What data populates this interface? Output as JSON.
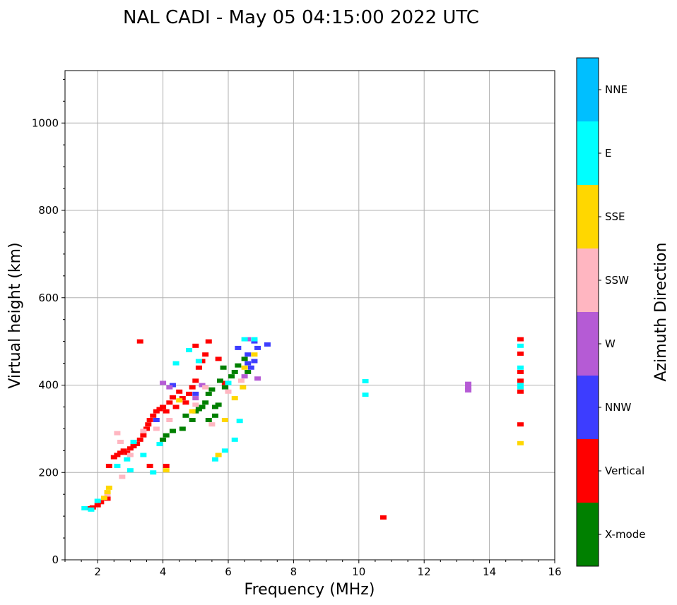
{
  "chart_data": {
    "type": "scatter",
    "title": "NAL CADI - May 05 04:15:00 2022 UTC",
    "xlabel": "Frequency (MHz)",
    "ylabel": "Virtual height (km)",
    "xlim": [
      1.0,
      16.0
    ],
    "ylim": [
      0,
      1120
    ],
    "xticks": [
      2,
      4,
      6,
      8,
      10,
      12,
      14,
      16
    ],
    "yticks": [
      0,
      200,
      400,
      600,
      800,
      1000
    ],
    "grid": true,
    "colorbar": {
      "label": "Azimuth Direction",
      "categories": [
        {
          "name": "X-mode",
          "color": "#008000"
        },
        {
          "name": "Vertical",
          "color": "#ff0000"
        },
        {
          "name": "NNW",
          "color": "#3d3dff"
        },
        {
          "name": "W",
          "color": "#b55bd5"
        },
        {
          "name": "SSW",
          "color": "#ffb6c1"
        },
        {
          "name": "SSE",
          "color": "#ffd700"
        },
        {
          "name": "E",
          "color": "#00ffff"
        },
        {
          "name": "NNE",
          "color": "#00bfff"
        }
      ]
    },
    "series": [
      {
        "name": "Vertical",
        "color": "#ff0000",
        "points": [
          [
            1.7,
            118
          ],
          [
            1.85,
            120
          ],
          [
            2.0,
            125
          ],
          [
            2.1,
            132
          ],
          [
            2.3,
            140
          ],
          [
            2.35,
            215
          ],
          [
            2.5,
            235
          ],
          [
            2.6,
            240
          ],
          [
            2.7,
            245
          ],
          [
            2.8,
            250
          ],
          [
            2.9,
            245
          ],
          [
            3.0,
            255
          ],
          [
            3.1,
            260
          ],
          [
            3.2,
            265
          ],
          [
            3.3,
            275
          ],
          [
            3.4,
            285
          ],
          [
            3.5,
            300
          ],
          [
            3.55,
            310
          ],
          [
            3.6,
            320
          ],
          [
            3.7,
            330
          ],
          [
            3.8,
            340
          ],
          [
            3.9,
            345
          ],
          [
            4.0,
            350
          ],
          [
            4.1,
            340
          ],
          [
            4.2,
            360
          ],
          [
            4.3,
            372
          ],
          [
            4.4,
            350
          ],
          [
            4.5,
            385
          ],
          [
            4.6,
            370
          ],
          [
            4.7,
            360
          ],
          [
            4.8,
            380
          ],
          [
            4.9,
            395
          ],
          [
            5.0,
            410
          ],
          [
            5.1,
            440
          ],
          [
            5.2,
            455
          ],
          [
            5.3,
            470
          ],
          [
            5.4,
            500
          ],
          [
            3.3,
            500
          ],
          [
            3.6,
            215
          ],
          [
            4.1,
            215
          ],
          [
            5.0,
            490
          ],
          [
            5.7,
            460
          ],
          [
            5.9,
            405
          ],
          [
            10.75,
            97
          ],
          [
            14.95,
            505
          ],
          [
            14.95,
            472
          ],
          [
            14.95,
            430
          ],
          [
            14.95,
            410
          ],
          [
            14.95,
            385
          ],
          [
            14.95,
            310
          ]
        ]
      },
      {
        "name": "X-mode",
        "color": "#008000",
        "points": [
          [
            4.0,
            275
          ],
          [
            4.1,
            285
          ],
          [
            4.3,
            295
          ],
          [
            4.6,
            300
          ],
          [
            4.7,
            330
          ],
          [
            4.9,
            320
          ],
          [
            5.0,
            340
          ],
          [
            5.1,
            345
          ],
          [
            5.2,
            350
          ],
          [
            5.3,
            360
          ],
          [
            5.4,
            380
          ],
          [
            5.5,
            390
          ],
          [
            5.6,
            350
          ],
          [
            5.7,
            355
          ],
          [
            5.75,
            410
          ],
          [
            5.85,
            440
          ],
          [
            5.9,
            395
          ],
          [
            6.1,
            420
          ],
          [
            6.2,
            430
          ],
          [
            6.3,
            445
          ],
          [
            6.5,
            460
          ],
          [
            6.6,
            430
          ],
          [
            5.4,
            320
          ],
          [
            5.6,
            330
          ]
        ]
      },
      {
        "name": "NNW",
        "color": "#3d3dff",
        "points": [
          [
            6.6,
            450
          ],
          [
            6.6,
            470
          ],
          [
            6.7,
            440
          ],
          [
            6.8,
            455
          ],
          [
            6.8,
            500
          ],
          [
            6.9,
            485
          ],
          [
            7.2,
            493
          ],
          [
            4.3,
            400
          ],
          [
            5.0,
            380
          ],
          [
            3.8,
            320
          ],
          [
            6.3,
            485
          ]
        ]
      },
      {
        "name": "W",
        "color": "#b55bd5",
        "points": [
          [
            4.0,
            405
          ],
          [
            4.2,
            395
          ],
          [
            5.2,
            400
          ],
          [
            5.0,
            370
          ],
          [
            6.6,
            505
          ],
          [
            6.9,
            415
          ],
          [
            6.5,
            420
          ],
          [
            13.35,
            403
          ],
          [
            13.35,
            395
          ],
          [
            13.35,
            388
          ]
        ]
      },
      {
        "name": "SSW",
        "color": "#ffb6c1",
        "points": [
          [
            2.6,
            290
          ],
          [
            2.7,
            270
          ],
          [
            2.75,
            190
          ],
          [
            3.0,
            240
          ],
          [
            3.4,
            295
          ],
          [
            3.8,
            300
          ],
          [
            4.2,
            320
          ],
          [
            5.0,
            355
          ],
          [
            5.3,
            395
          ],
          [
            5.5,
            310
          ],
          [
            6.0,
            385
          ],
          [
            6.4,
            410
          ],
          [
            2.3,
            150
          ]
        ]
      },
      {
        "name": "SSE",
        "color": "#ffd700",
        "points": [
          [
            2.3,
            155
          ],
          [
            2.35,
            165
          ],
          [
            2.2,
            142
          ],
          [
            4.1,
            205
          ],
          [
            4.9,
            340
          ],
          [
            5.7,
            240
          ],
          [
            6.2,
            370
          ],
          [
            6.45,
            395
          ],
          [
            6.5,
            440
          ],
          [
            6.8,
            470
          ],
          [
            14.95,
            267
          ],
          [
            4.5,
            365
          ],
          [
            5.9,
            320
          ]
        ]
      },
      {
        "name": "E",
        "color": "#00ffff",
        "points": [
          [
            1.6,
            118
          ],
          [
            1.8,
            115
          ],
          [
            2.0,
            135
          ],
          [
            2.6,
            215
          ],
          [
            2.9,
            230
          ],
          [
            3.1,
            270
          ],
          [
            3.4,
            240
          ],
          [
            3.7,
            200
          ],
          [
            3.9,
            265
          ],
          [
            4.4,
            450
          ],
          [
            4.8,
            480
          ],
          [
            5.1,
            455
          ],
          [
            5.6,
            230
          ],
          [
            5.9,
            250
          ],
          [
            6.2,
            275
          ],
          [
            6.35,
            318
          ],
          [
            6.0,
            405
          ],
          [
            6.5,
            505
          ],
          [
            6.8,
            505
          ],
          [
            10.2,
            409
          ],
          [
            10.2,
            378
          ],
          [
            14.95,
            490
          ],
          [
            14.95,
            440
          ],
          [
            14.95,
            400
          ],
          [
            14.95,
            395
          ],
          [
            3.0,
            205
          ]
        ]
      }
    ]
  }
}
